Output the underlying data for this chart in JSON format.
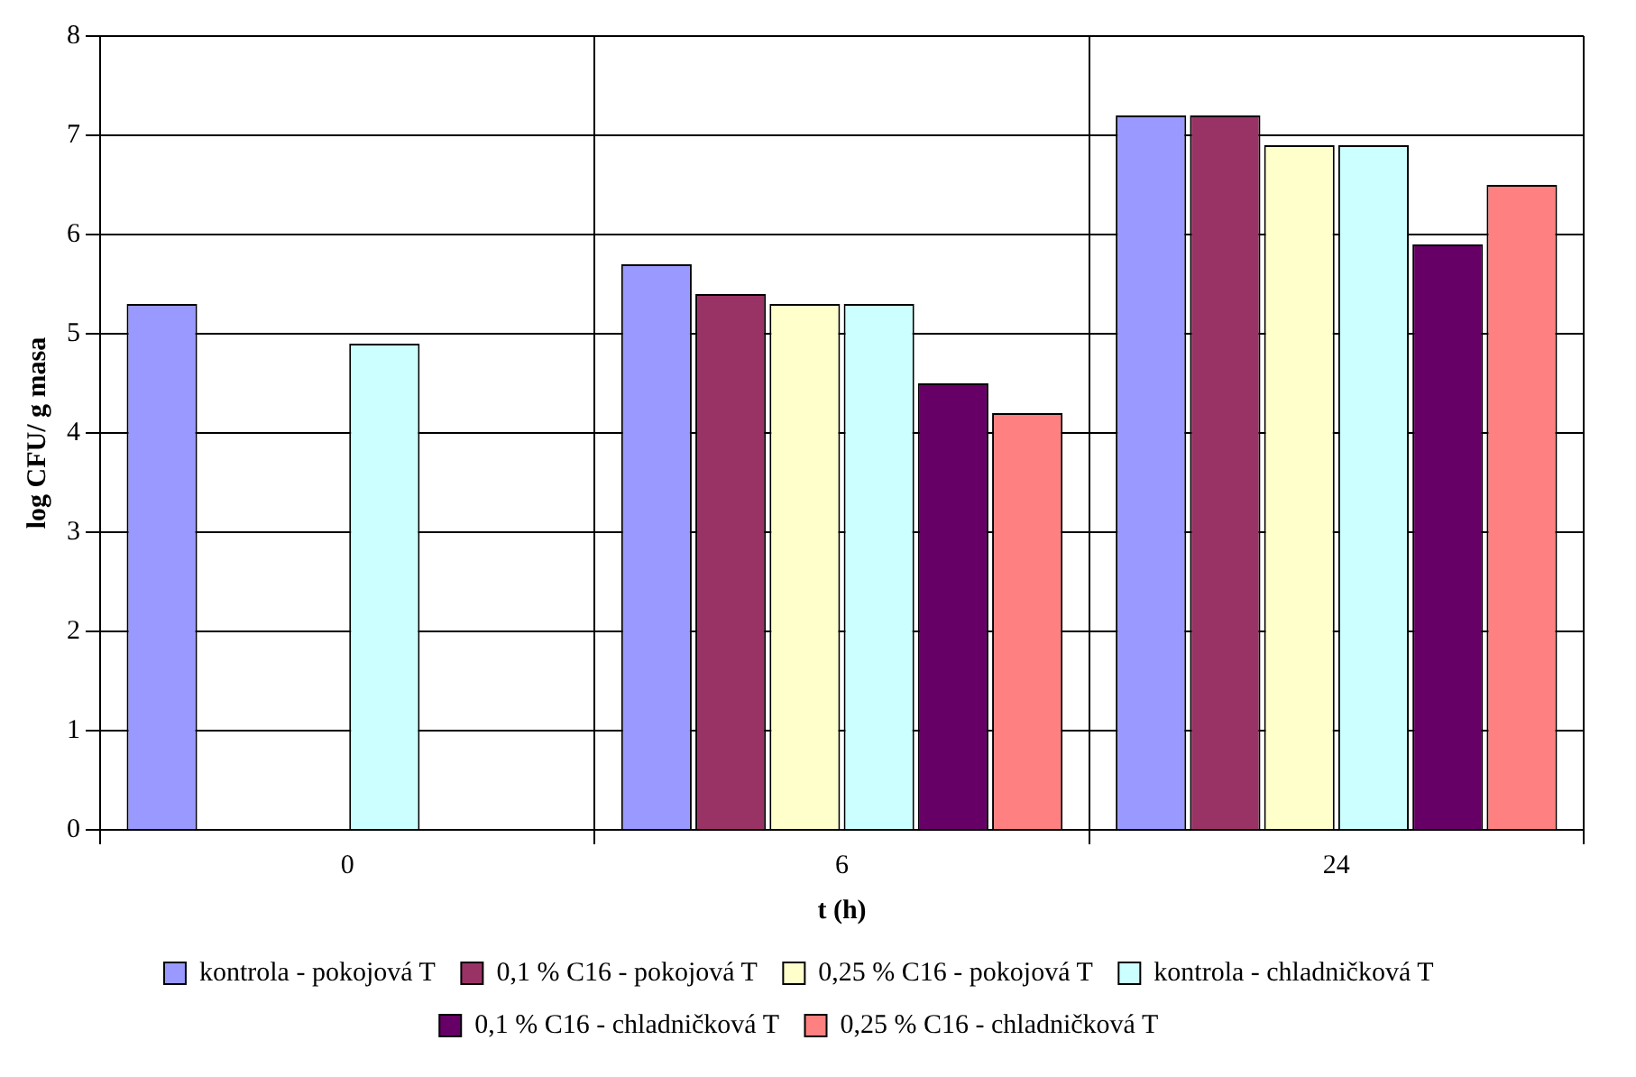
{
  "chart_data": {
    "type": "bar",
    "xlabel": "t (h)",
    "ylabel": "log CFU/ g masa",
    "categories": [
      "0",
      "6",
      "24"
    ],
    "series": [
      {
        "name": "kontrola - pokojová T",
        "color": "#9999ff",
        "values": [
          5.3,
          5.7,
          7.2
        ]
      },
      {
        "name": "0,1 % C16 - pokojová T",
        "color": "#993366",
        "values": [
          null,
          5.4,
          7.2
        ]
      },
      {
        "name": "0,25 % C16 - pokojová T",
        "color": "#ffffcc",
        "values": [
          null,
          5.3,
          6.9
        ]
      },
      {
        "name": "kontrola - chladničková T",
        "color": "#ccffff",
        "values": [
          4.9,
          5.3,
          6.9
        ]
      },
      {
        "name": "0,1 % C16 - chladničková T",
        "color": "#660066",
        "values": [
          null,
          4.5,
          5.9
        ]
      },
      {
        "name": "0,25 % C16 - chladničková T",
        "color": "#ff8080",
        "values": [
          null,
          4.2,
          6.5
        ]
      }
    ],
    "ylim": [
      0,
      8
    ],
    "yticks": [
      0,
      1,
      2,
      3,
      4,
      5,
      6,
      7,
      8
    ],
    "grid": true,
    "legend": "bottom"
  }
}
